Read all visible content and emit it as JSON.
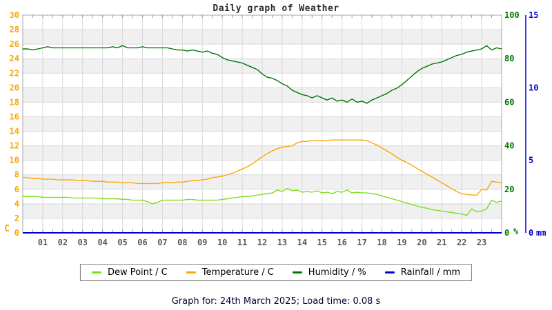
{
  "page": {
    "title": "Daily graph of Weather",
    "caption": "Graph for: 24th March 2025; Load time: 0.08 s"
  },
  "chart_data": {
    "type": "line",
    "title": "Daily graph of Weather",
    "grid": true,
    "background_bands": true,
    "legend_position": "bottom-center",
    "x_axis": {
      "unit": "hour of day",
      "start": 0,
      "end": 24,
      "interval_hours": 0.25,
      "tick_labels": [
        "01",
        "02",
        "03",
        "04",
        "05",
        "06",
        "07",
        "08",
        "09",
        "10",
        "11",
        "12",
        "13",
        "14",
        "15",
        "16",
        "17",
        "18",
        "19",
        "20",
        "21",
        "22",
        "23"
      ]
    },
    "axes": {
      "left": {
        "label": "C",
        "min": 0,
        "max": 30,
        "tick_step": 2,
        "color": "#FFA500",
        "ticks": [
          0,
          2,
          4,
          6,
          8,
          10,
          12,
          14,
          16,
          18,
          20,
          22,
          24,
          26,
          28,
          30
        ]
      },
      "right_percent": {
        "label": "%",
        "min": 0,
        "max": 100,
        "color": "#007700",
        "ticks": [
          0,
          20,
          40,
          60,
          80,
          100
        ]
      },
      "right_mm": {
        "label": "mm",
        "min": 0,
        "max": 15,
        "color": "#0000D0",
        "ticks": [
          0,
          5,
          10,
          15
        ]
      }
    },
    "series": [
      {
        "name": "Dew Point / C",
        "axis": "left",
        "color": "#7CDF1C",
        "values": [
          5.0,
          5.0,
          5.0,
          5.0,
          4.9,
          4.9,
          4.9,
          4.9,
          4.9,
          4.9,
          4.8,
          4.8,
          4.8,
          4.8,
          4.8,
          4.8,
          4.7,
          4.7,
          4.7,
          4.7,
          4.6,
          4.6,
          4.5,
          4.5,
          4.5,
          4.3,
          4.0,
          4.2,
          4.5,
          4.5,
          4.5,
          4.5,
          4.5,
          4.6,
          4.6,
          4.5,
          4.5,
          4.5,
          4.5,
          4.5,
          4.6,
          4.7,
          4.8,
          4.9,
          5.0,
          5.0,
          5.1,
          5.2,
          5.3,
          5.4,
          5.5,
          5.9,
          5.7,
          6.1,
          5.8,
          5.9,
          5.6,
          5.7,
          5.6,
          5.8,
          5.5,
          5.6,
          5.4,
          5.7,
          5.6,
          5.9,
          5.5,
          5.6,
          5.5,
          5.5,
          5.4,
          5.3,
          5.1,
          4.9,
          4.7,
          4.5,
          4.3,
          4.1,
          3.9,
          3.7,
          3.5,
          3.4,
          3.2,
          3.1,
          3.0,
          2.9,
          2.8,
          2.7,
          2.6,
          2.4,
          3.3,
          2.9,
          3.0,
          3.3,
          4.5,
          4.2,
          4.4
        ]
      },
      {
        "name": "Temperature / C",
        "axis": "left",
        "color": "#FFA500",
        "values": [
          7.6,
          7.6,
          7.5,
          7.5,
          7.4,
          7.4,
          7.4,
          7.3,
          7.3,
          7.3,
          7.3,
          7.2,
          7.2,
          7.2,
          7.1,
          7.1,
          7.1,
          7.0,
          7.0,
          7.0,
          6.9,
          6.9,
          6.9,
          6.8,
          6.8,
          6.8,
          6.8,
          6.8,
          6.9,
          6.9,
          6.9,
          7.0,
          7.0,
          7.1,
          7.2,
          7.2,
          7.3,
          7.4,
          7.6,
          7.7,
          7.8,
          8.0,
          8.2,
          8.5,
          8.8,
          9.1,
          9.5,
          10.0,
          10.5,
          10.9,
          11.3,
          11.6,
          11.8,
          11.9,
          12.0,
          12.4,
          12.6,
          12.6,
          12.7,
          12.7,
          12.7,
          12.7,
          12.8,
          12.8,
          12.8,
          12.8,
          12.8,
          12.8,
          12.8,
          12.7,
          12.4,
          12.1,
          11.7,
          11.3,
          10.9,
          10.4,
          10.0,
          9.7,
          9.3,
          8.9,
          8.5,
          8.1,
          7.7,
          7.3,
          6.9,
          6.5,
          6.1,
          5.7,
          5.4,
          5.3,
          5.2,
          5.2,
          6.0,
          5.9,
          7.1,
          7.0,
          6.9
        ]
      },
      {
        "name": "Humidity / %",
        "axis": "right_percent",
        "color": "#007700",
        "values": [
          84.5,
          84.5,
          84,
          84.5,
          85,
          85.5,
          85,
          85,
          85,
          85,
          85,
          85,
          85,
          85,
          85,
          85,
          85,
          85,
          85.5,
          85,
          86,
          85,
          85,
          85,
          85.5,
          85,
          85,
          85,
          85,
          85,
          84.5,
          84,
          84,
          83.5,
          84,
          83.5,
          83,
          83.5,
          82.5,
          82,
          80.5,
          79.5,
          79,
          78.5,
          78,
          77,
          76,
          75,
          73,
          71.5,
          71,
          70,
          68.5,
          67.5,
          65.5,
          64.5,
          63.5,
          63,
          62,
          63,
          62,
          61,
          62,
          60.5,
          61,
          60,
          61.5,
          60,
          60.5,
          59.5,
          61,
          62,
          63,
          64,
          65.5,
          66.5,
          68,
          70,
          72,
          74,
          75.5,
          76.5,
          77.5,
          78,
          78.5,
          79.5,
          80.5,
          81.5,
          82,
          83,
          83.5,
          84,
          84.5,
          86,
          84,
          85,
          84.5
        ]
      },
      {
        "name": "Rainfall / mm",
        "axis": "right_mm",
        "color": "#0000D0",
        "constant": 0
      }
    ],
    "palette": {
      "band": "#f0f0f0",
      "grid": "#d9d9d9",
      "border": "#a8a8a8",
      "tick": "#9a9a9a",
      "x_labels": "#5a5a5a"
    }
  }
}
